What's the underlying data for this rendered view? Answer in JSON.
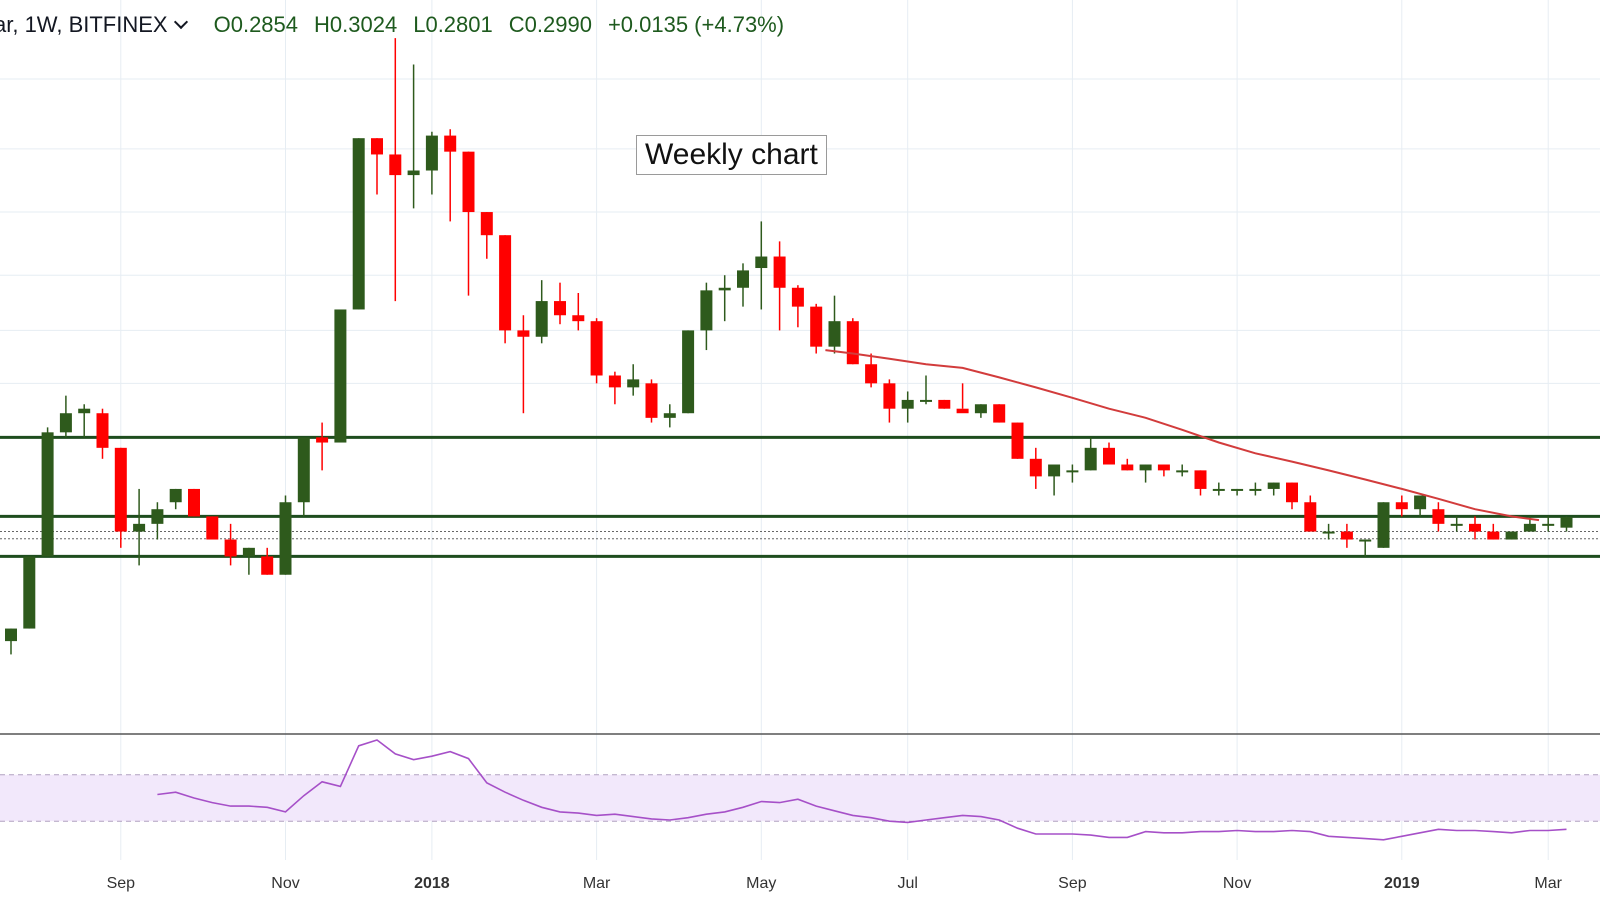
{
  "header": {
    "symbol": "ar, 1W, BITFINEX",
    "open_label": "O",
    "open": "0.2854",
    "high_label": "H",
    "high": "0.3024",
    "low_label": "L",
    "low": "0.2801",
    "close_label": "C",
    "close": "0.2990",
    "change": "+0.0135 (+4.73%)"
  },
  "annotation": "Weekly chart",
  "colors": {
    "up": "#2e5a1c",
    "down": "#ff0000",
    "ma": "#d23c3c",
    "support_lines": "#1e4d1e",
    "rsi_line": "#a650c8",
    "rsi_band": "#f2e8fb",
    "grid": "#e6edf3"
  },
  "chart_data": [
    {
      "type": "candlestick",
      "timeframe": "1W",
      "exchange": "BITFINEX",
      "x_ticks": [
        {
          "label": "Sep",
          "week": 6
        },
        {
          "label": "Nov",
          "week": 15
        },
        {
          "label": "2018",
          "week": 23,
          "bold": true
        },
        {
          "label": "Mar",
          "week": 32
        },
        {
          "label": "May",
          "week": 41
        },
        {
          "label": "Jul",
          "week": 49
        },
        {
          "label": "Sep",
          "week": 58
        },
        {
          "label": "Nov",
          "week": 67
        },
        {
          "label": "2019",
          "week": 76,
          "bold": true
        },
        {
          "label": "Mar",
          "week": 84
        }
      ],
      "ylim": [
        0.13,
        2.75
      ],
      "candles": [
        [
          0.17,
          0.18,
          0.16,
          0.18
        ],
        [
          0.18,
          0.25,
          0.18,
          0.25
        ],
        [
          0.25,
          0.45,
          0.25,
          0.44
        ],
        [
          0.44,
          0.52,
          0.43,
          0.48
        ],
        [
          0.48,
          0.5,
          0.43,
          0.49
        ],
        [
          0.48,
          0.49,
          0.39,
          0.41
        ],
        [
          0.41,
          0.41,
          0.26,
          0.28
        ],
        [
          0.28,
          0.34,
          0.24,
          0.29
        ],
        [
          0.29,
          0.32,
          0.27,
          0.31
        ],
        [
          0.32,
          0.34,
          0.31,
          0.34
        ],
        [
          0.34,
          0.34,
          0.3,
          0.3
        ],
        [
          0.3,
          0.3,
          0.28,
          0.27
        ],
        [
          0.27,
          0.29,
          0.24,
          0.25
        ],
        [
          0.25,
          0.26,
          0.23,
          0.26
        ],
        [
          0.25,
          0.26,
          0.23,
          0.23
        ],
        [
          0.23,
          0.33,
          0.23,
          0.32
        ],
        [
          0.32,
          0.43,
          0.3,
          0.43
        ],
        [
          0.43,
          0.46,
          0.37,
          0.42
        ],
        [
          0.42,
          0.77,
          0.42,
          0.77
        ],
        [
          0.77,
          1.68,
          0.77,
          1.68
        ],
        [
          1.68,
          1.68,
          1.3,
          1.56
        ],
        [
          1.56,
          2.65,
          0.8,
          1.42
        ],
        [
          1.42,
          2.35,
          1.22,
          1.45
        ],
        [
          1.45,
          1.73,
          1.3,
          1.7
        ],
        [
          1.7,
          1.75,
          1.15,
          1.58
        ],
        [
          1.58,
          1.58,
          0.82,
          1.2
        ],
        [
          1.2,
          1.2,
          0.97,
          1.08
        ],
        [
          1.08,
          1.08,
          0.66,
          0.7
        ],
        [
          0.7,
          0.75,
          0.48,
          0.68
        ],
        [
          0.68,
          0.88,
          0.66,
          0.8
        ],
        [
          0.8,
          0.87,
          0.72,
          0.75
        ],
        [
          0.75,
          0.83,
          0.7,
          0.73
        ],
        [
          0.73,
          0.74,
          0.55,
          0.57
        ],
        [
          0.57,
          0.58,
          0.5,
          0.54
        ],
        [
          0.54,
          0.6,
          0.52,
          0.56
        ],
        [
          0.55,
          0.56,
          0.46,
          0.47
        ],
        [
          0.47,
          0.5,
          0.45,
          0.48
        ],
        [
          0.48,
          0.7,
          0.48,
          0.7
        ],
        [
          0.7,
          0.87,
          0.64,
          0.84
        ],
        [
          0.84,
          0.9,
          0.73,
          0.85
        ],
        [
          0.85,
          0.95,
          0.78,
          0.92
        ],
        [
          0.93,
          1.15,
          0.77,
          0.98
        ],
        [
          0.98,
          1.05,
          0.7,
          0.85
        ],
        [
          0.85,
          0.86,
          0.71,
          0.78
        ],
        [
          0.78,
          0.79,
          0.63,
          0.65
        ],
        [
          0.65,
          0.82,
          0.63,
          0.73
        ],
        [
          0.73,
          0.74,
          0.6,
          0.6
        ],
        [
          0.6,
          0.63,
          0.54,
          0.55
        ],
        [
          0.55,
          0.56,
          0.46,
          0.49
        ],
        [
          0.49,
          0.53,
          0.46,
          0.51
        ],
        [
          0.51,
          0.57,
          0.5,
          0.51
        ],
        [
          0.51,
          0.51,
          0.49,
          0.49
        ],
        [
          0.49,
          0.55,
          0.49,
          0.48
        ],
        [
          0.48,
          0.5,
          0.47,
          0.5
        ],
        [
          0.5,
          0.5,
          0.46,
          0.46
        ],
        [
          0.46,
          0.46,
          0.39,
          0.39
        ],
        [
          0.39,
          0.41,
          0.34,
          0.36
        ],
        [
          0.36,
          0.37,
          0.33,
          0.38
        ],
        [
          0.37,
          0.38,
          0.35,
          0.37
        ],
        [
          0.37,
          0.43,
          0.37,
          0.41
        ],
        [
          0.41,
          0.42,
          0.38,
          0.38
        ],
        [
          0.38,
          0.39,
          0.37,
          0.37
        ],
        [
          0.37,
          0.38,
          0.35,
          0.38
        ],
        [
          0.38,
          0.38,
          0.36,
          0.37
        ],
        [
          0.37,
          0.38,
          0.36,
          0.37
        ],
        [
          0.37,
          0.37,
          0.33,
          0.34
        ],
        [
          0.34,
          0.35,
          0.33,
          0.34
        ],
        [
          0.34,
          0.34,
          0.33,
          0.34
        ],
        [
          0.34,
          0.35,
          0.33,
          0.34
        ],
        [
          0.34,
          0.35,
          0.33,
          0.35
        ],
        [
          0.35,
          0.35,
          0.31,
          0.32
        ],
        [
          0.32,
          0.33,
          0.28,
          0.28
        ],
        [
          0.28,
          0.29,
          0.27,
          0.28
        ],
        [
          0.28,
          0.29,
          0.26,
          0.27
        ],
        [
          0.27,
          0.27,
          0.25,
          0.27
        ],
        [
          0.26,
          0.32,
          0.26,
          0.32
        ],
        [
          0.32,
          0.33,
          0.3,
          0.31
        ],
        [
          0.31,
          0.33,
          0.3,
          0.33
        ],
        [
          0.31,
          0.32,
          0.28,
          0.29
        ],
        [
          0.29,
          0.3,
          0.28,
          0.29
        ],
        [
          0.29,
          0.3,
          0.27,
          0.28
        ],
        [
          0.28,
          0.29,
          0.27,
          0.27
        ],
        [
          0.27,
          0.28,
          0.27,
          0.28
        ],
        [
          0.28,
          0.3,
          0.28,
          0.29
        ],
        [
          0.29,
          0.3,
          0.28,
          0.29
        ],
        [
          0.285,
          0.3,
          0.28,
          0.299
        ]
      ],
      "moving_average": [
        [
          44.5,
          0.64
        ],
        [
          46,
          0.63
        ],
        [
          48,
          0.615
        ],
        [
          50,
          0.6
        ],
        [
          52,
          0.59
        ],
        [
          54,
          0.565
        ],
        [
          56,
          0.54
        ],
        [
          58,
          0.515
        ],
        [
          60,
          0.49
        ],
        [
          62,
          0.47
        ],
        [
          64,
          0.445
        ],
        [
          66,
          0.42
        ],
        [
          68,
          0.4
        ],
        [
          70,
          0.385
        ],
        [
          72,
          0.37
        ],
        [
          74,
          0.355
        ],
        [
          76,
          0.34
        ],
        [
          78,
          0.325
        ],
        [
          80,
          0.31
        ],
        [
          82,
          0.3
        ],
        [
          83.5,
          0.295
        ]
      ],
      "horizontal_levels": [
        0.43,
        0.3,
        0.25
      ],
      "dotted_levels": [
        0.28,
        0.271
      ]
    },
    {
      "type": "line",
      "indicator": "oscillator",
      "ylim": [
        0,
        100
      ],
      "band": [
        30,
        70
      ],
      "values": [
        null,
        null,
        null,
        null,
        null,
        null,
        null,
        null,
        53,
        55,
        50,
        46,
        43,
        43,
        42,
        38,
        52,
        64,
        60,
        95,
        100,
        88,
        83,
        86,
        90,
        84,
        63,
        55,
        48,
        42,
        38,
        37,
        35,
        36,
        34,
        32,
        31,
        33,
        36,
        38,
        42,
        47,
        46,
        49,
        43,
        39,
        35,
        33,
        30,
        29,
        31,
        33,
        35,
        34,
        31,
        24,
        19,
        19,
        19,
        18,
        16,
        16,
        21,
        20,
        20,
        21,
        21,
        22,
        21,
        21,
        22,
        21,
        17,
        16,
        15,
        14,
        17,
        20,
        23,
        22,
        22,
        21,
        20,
        22,
        22,
        23
      ]
    }
  ]
}
